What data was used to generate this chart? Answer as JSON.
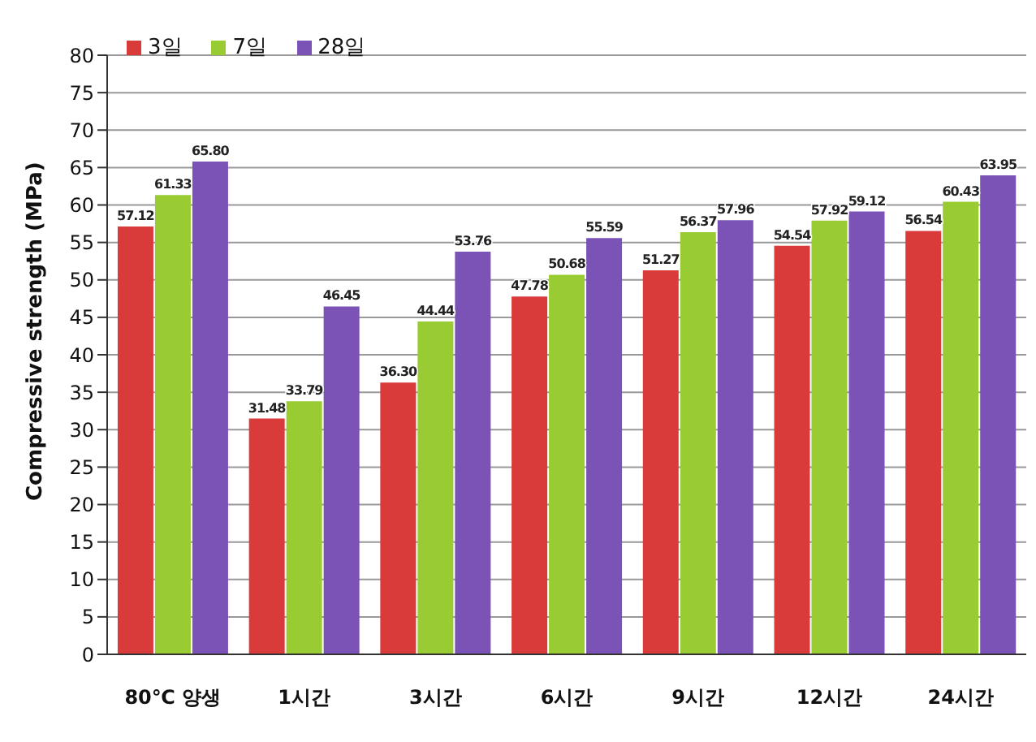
{
  "chart_data": {
    "type": "bar",
    "ylabel": "Compressive strength (MPa)",
    "categories": [
      "80℃ 양생",
      "1시간",
      "3시간",
      "6시간",
      "9시간",
      "12시간",
      "24시간"
    ],
    "series": [
      {
        "name": "3일",
        "color": "#d93a3a",
        "values": [
          57.12,
          31.48,
          36.3,
          47.78,
          51.27,
          54.54,
          56.54
        ],
        "value_labels": [
          "57.12",
          "31.48",
          "36.30",
          "47.78",
          "51.27",
          "54.54",
          "56.54"
        ]
      },
      {
        "name": "7일",
        "color": "#99cc33",
        "values": [
          61.33,
          33.79,
          44.44,
          50.68,
          56.37,
          57.92,
          60.43
        ],
        "value_labels": [
          "61.33",
          "33.79",
          "44.44",
          "50.68",
          "56.37",
          "57.92",
          "60.43"
        ]
      },
      {
        "name": "28일",
        "color": "#7b52b5",
        "values": [
          65.8,
          46.45,
          53.76,
          55.59,
          57.96,
          59.12,
          63.95
        ],
        "value_labels": [
          "65.80",
          "46.45",
          "53.76",
          "55.59",
          "57.96",
          "59.12",
          "63.95"
        ]
      }
    ],
    "ylim": [
      0,
      80
    ],
    "yticks": [
      0,
      5,
      10,
      15,
      20,
      25,
      30,
      35,
      40,
      45,
      50,
      55,
      60,
      65,
      70,
      75,
      80
    ],
    "grid": "y",
    "legend": "top left"
  }
}
